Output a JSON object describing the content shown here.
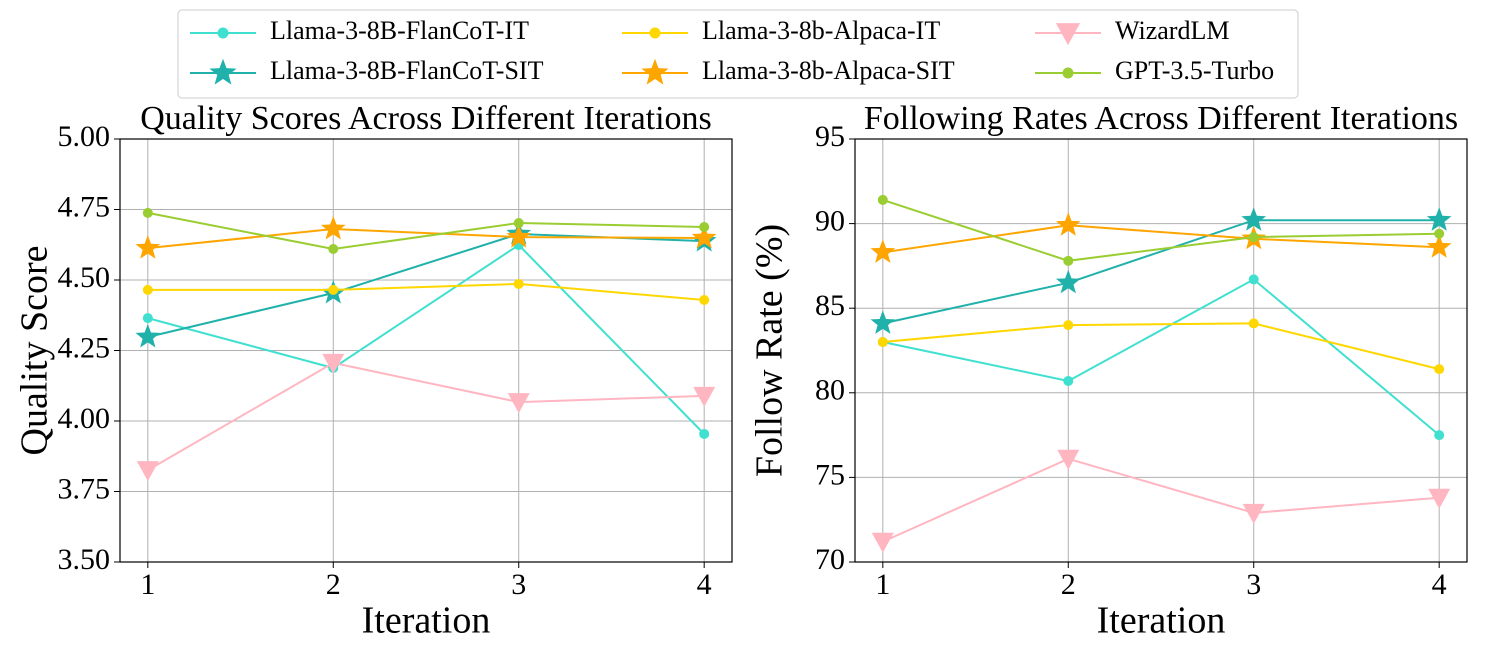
{
  "chart_data": [
    {
      "type": "line",
      "title": "Quality Scores Across Different Iterations",
      "x_label": "Iteration",
      "y_label": "Quality Score",
      "x": [
        1,
        2,
        3,
        4
      ],
      "xlim": [
        0.85,
        4.15
      ],
      "xticks": [
        1,
        2,
        3,
        4
      ],
      "ylim": [
        3.5,
        5
      ],
      "yticks": [
        {
          "value": 3.5,
          "label": "3.50"
        },
        {
          "value": 3.75,
          "label": "3.75"
        },
        {
          "value": 4,
          "label": "4.00"
        },
        {
          "value": 4.25,
          "label": "4.25"
        },
        {
          "value": 4.5,
          "label": "4.50"
        },
        {
          "value": 4.75,
          "label": "4.75"
        },
        {
          "value": 5,
          "label": "5.00"
        }
      ],
      "grid": true,
      "legend": "upper center",
      "series": [
        {
          "name": "Llama-3-8B-FlanCoT-IT",
          "color": "#40e0d0",
          "marker": "circle",
          "values": [
            4.365,
            4.188,
            4.624,
            3.954
          ]
        },
        {
          "name": "Llama-3-8B-FlanCoT-SIT",
          "color": "#20b2aa",
          "marker": "star",
          "values": [
            4.298,
            4.454,
            4.663,
            4.638
          ]
        },
        {
          "name": "Llama-3-8b-Alpaca-IT",
          "color": "#ffd700",
          "marker": "circle",
          "values": [
            4.465,
            4.465,
            4.486,
            4.429
          ]
        },
        {
          "name": "Llama-3-8b-Alpaca-SIT",
          "color": "#ffa500",
          "marker": "star",
          "values": [
            4.613,
            4.681,
            4.652,
            4.649
          ]
        },
        {
          "name": "WizardLM",
          "color": "#ffb6c1",
          "marker": "triangle-down",
          "values": [
            3.826,
            4.206,
            4.067,
            4.089
          ]
        },
        {
          "name": "GPT-3.5-Turbo",
          "color": "#9acd32",
          "marker": "circle",
          "values": [
            4.738,
            4.61,
            4.702,
            4.688
          ]
        }
      ]
    },
    {
      "type": "line",
      "title": "Following Rates Across Different Iterations",
      "x_label": "Iteration",
      "y_label": "Follow Rate (%)",
      "x": [
        1,
        2,
        3,
        4
      ],
      "xlim": [
        0.85,
        4.15
      ],
      "xticks": [
        1,
        2,
        3,
        4
      ],
      "ylim": [
        70,
        95
      ],
      "yticks": [
        70,
        75,
        80,
        85,
        90,
        95
      ],
      "grid": true,
      "series": [
        {
          "name": "Llama-3-8B-FlanCoT-IT",
          "color": "#40e0d0",
          "marker": "circle",
          "values": [
            83.0,
            80.7,
            86.7,
            77.5
          ]
        },
        {
          "name": "Llama-3-8B-FlanCoT-SIT",
          "color": "#20b2aa",
          "marker": "star",
          "values": [
            84.1,
            86.5,
            90.2,
            90.2
          ]
        },
        {
          "name": "Llama-3-8b-Alpaca-IT",
          "color": "#ffd700",
          "marker": "circle",
          "values": [
            83.0,
            84.0,
            84.1,
            81.4
          ]
        },
        {
          "name": "Llama-3-8b-Alpaca-SIT",
          "color": "#ffa500",
          "marker": "star",
          "values": [
            88.3,
            89.9,
            89.1,
            88.6
          ]
        },
        {
          "name": "WizardLM",
          "color": "#ffb6c1",
          "marker": "triangle-down",
          "values": [
            71.2,
            76.1,
            72.9,
            73.8
          ]
        },
        {
          "name": "GPT-3.5-Turbo",
          "color": "#9acd32",
          "marker": "circle",
          "values": [
            91.4,
            87.8,
            89.2,
            89.4
          ]
        }
      ]
    }
  ]
}
